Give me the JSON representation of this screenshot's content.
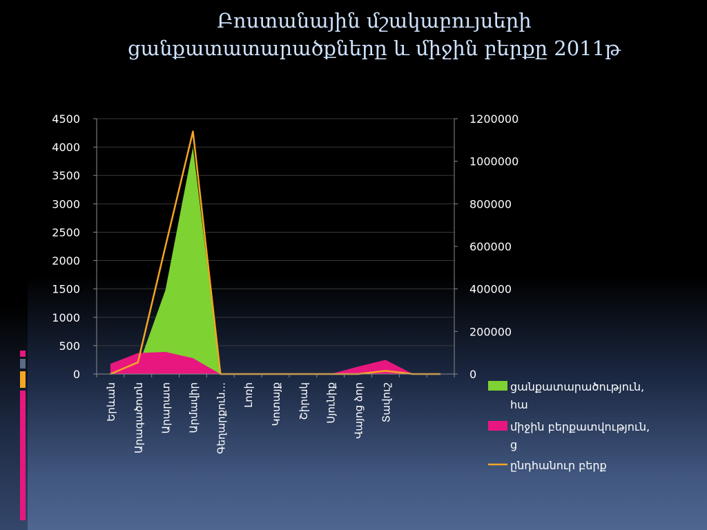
{
  "slide": {
    "title_line1": "Բոստանային մշակաբույսերի",
    "title_line2": "ցանքատատարածքները և միջին բերքը 2011թ"
  },
  "colors": {
    "area_sown": "#7ed232",
    "area_yield": "#e8177f",
    "line_total": "#f5a623",
    "accent_strips": [
      "#e8177f",
      "#5b6a87",
      "#f5a623",
      "#e8177f"
    ]
  },
  "chart_data": {
    "type": "area",
    "categories": [
      "Երևան",
      "Արագածոտն",
      "Արարատ",
      "Արմավիր",
      "Գեղարքունիք",
      "Լոռի",
      "Կոտայք",
      "Շիրակ",
      "Սյունիք",
      "Վայոց ձոր",
      "Տավուշ",
      "",
      ""
    ],
    "category_labels": [
      "Երևան",
      "Արագածոտն",
      "Արարատ",
      "Արմավիր",
      "Գեղարքուն...",
      "Լոռի",
      "Կոտայք",
      "Շիրակ",
      "Սյունիք",
      "Վայոց ձոր",
      "Տավուշ"
    ],
    "y_left": {
      "ticks": [
        "0",
        "500",
        "1000",
        "1500",
        "2000",
        "2500",
        "3000",
        "3500",
        "4000",
        "4500"
      ],
      "range": [
        0,
        4500
      ]
    },
    "y_right": {
      "ticks": [
        "0",
        "200000",
        "400000",
        "600000",
        "800000",
        "1000000",
        "1200000"
      ],
      "range": [
        0,
        1200000
      ]
    },
    "grid": true,
    "legend_position": "right",
    "series": [
      {
        "name": "ցանքատարածություն, հա",
        "type": "area",
        "axis": "left",
        "values": [
          0,
          120,
          1480,
          4000,
          0,
          0,
          0,
          0,
          0,
          0,
          40,
          0,
          0
        ]
      },
      {
        "name": "միջին բերքատվություն, ց",
        "type": "area",
        "axis": "left",
        "values": [
          180,
          370,
          390,
          280,
          0,
          0,
          0,
          0,
          0,
          130,
          250,
          0,
          0
        ]
      },
      {
        "name": "ընդհանուր բերք",
        "type": "line",
        "axis": "right",
        "values": [
          0,
          55000,
          600000,
          1140000,
          0,
          0,
          0,
          0,
          0,
          0,
          15000,
          0,
          0
        ]
      }
    ]
  }
}
